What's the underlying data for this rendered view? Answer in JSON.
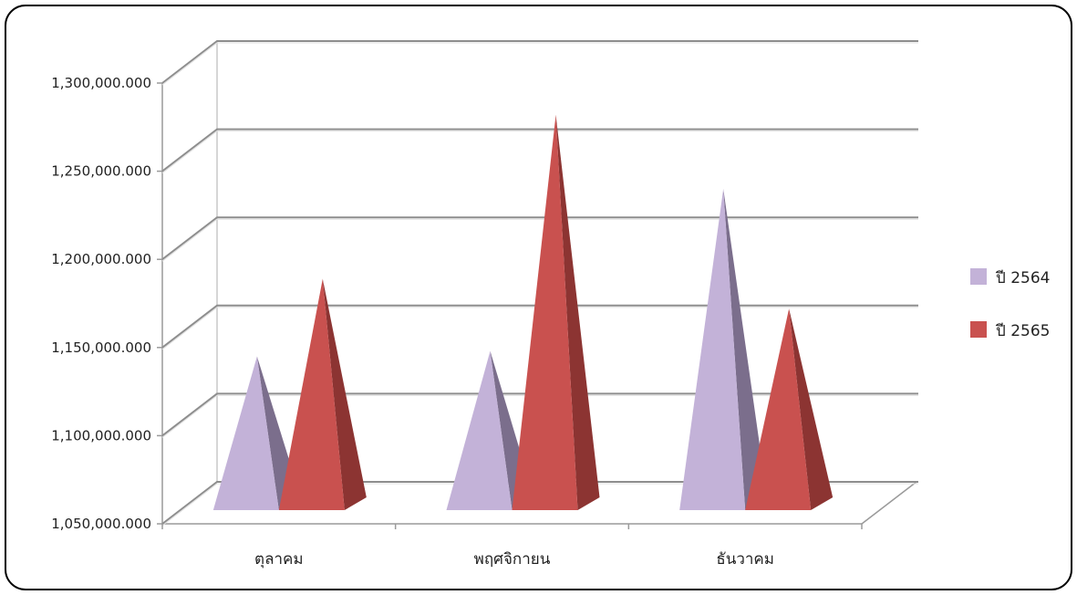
{
  "chart_data": {
    "type": "bar",
    "style": "3d-pyramid",
    "categories": [
      "ตุลาคม",
      "พฤศจิกายน",
      "ธันวาคม"
    ],
    "series": [
      {
        "name": "ปี 2564",
        "values": [
          1145000,
          1148000,
          1240000
        ],
        "color": "#c3b2d8",
        "shade": "#7b6e8c"
      },
      {
        "name": "ปี 2565",
        "values": [
          1189000,
          1282000,
          1172000
        ],
        "color": "#c9514f",
        "shade": "#8c3432"
      }
    ],
    "y_ticks": [
      "1,050,000.000",
      "1,100,000.000",
      "1,150,000.000",
      "1,200,000.000",
      "1,250,000.000",
      "1,300,000.000"
    ],
    "ylim": [
      1050000,
      1300000
    ],
    "grid": true,
    "legend_position": "right"
  }
}
